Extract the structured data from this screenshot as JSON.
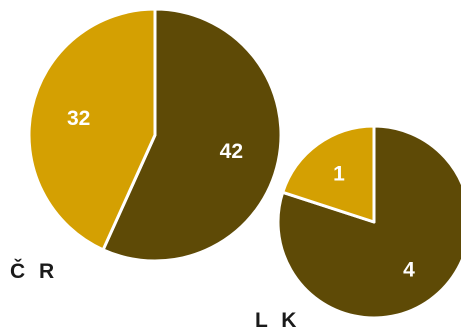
{
  "chart_data": [
    {
      "type": "pie",
      "title": "Č R",
      "slices": [
        {
          "value": 42,
          "label": "42",
          "color": "#5e4a06"
        },
        {
          "value": 32,
          "label": "32",
          "color": "#d4a002"
        }
      ]
    },
    {
      "type": "pie",
      "title": "L K",
      "slices": [
        {
          "value": 4,
          "label": "4",
          "color": "#5e4a06"
        },
        {
          "value": 1,
          "label": "1",
          "color": "#d4a002"
        }
      ]
    }
  ],
  "colors": {
    "dark": "#5e4a06",
    "gold": "#d4a002",
    "separator": "#ffffff",
    "title": "#1a1a1a"
  }
}
